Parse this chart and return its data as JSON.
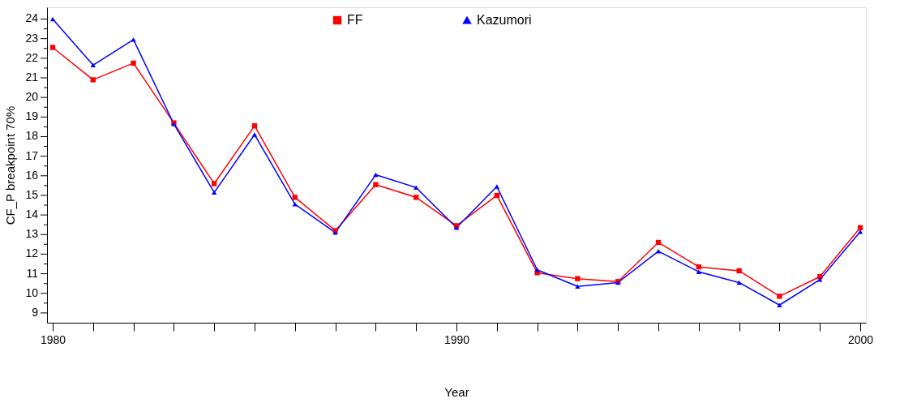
{
  "chart_data": {
    "type": "line",
    "xlabel": "Year",
    "ylabel": "CF_P breakpoint 70%",
    "x": [
      1980,
      1981,
      1982,
      1983,
      1984,
      1985,
      1986,
      1987,
      1988,
      1989,
      1990,
      1991,
      1992,
      1993,
      1994,
      1995,
      1996,
      1997,
      1998,
      1999,
      2000
    ],
    "series": [
      {
        "name": "FF",
        "color": "#ff0000",
        "marker": "square",
        "values": [
          22.55,
          20.9,
          21.75,
          18.7,
          15.6,
          18.55,
          14.9,
          13.2,
          15.55,
          14.9,
          13.45,
          15.0,
          11.05,
          10.75,
          10.6,
          12.6,
          11.35,
          11.15,
          9.85,
          10.85,
          13.35
        ]
      },
      {
        "name": "Kazumori",
        "color": "#0000ff",
        "marker": "triangle",
        "values": [
          24.0,
          21.65,
          22.95,
          18.65,
          15.15,
          18.1,
          14.55,
          13.1,
          16.05,
          15.4,
          13.35,
          15.45,
          11.2,
          10.35,
          10.55,
          12.15,
          11.1,
          10.55,
          9.4,
          10.7,
          13.15
        ]
      }
    ],
    "xlim": [
      1979.86,
      2000.14
    ],
    "ylim": [
      8.5,
      24.6
    ],
    "xticks": [
      1980,
      {
        "value": 1981,
        "label": null
      },
      {
        "value": 1982,
        "label": null
      },
      {
        "value": 1983,
        "label": null
      },
      {
        "value": 1984,
        "label": null
      },
      {
        "value": 1985,
        "label": null
      },
      {
        "value": 1986,
        "label": null
      },
      {
        "value": 1987,
        "label": null
      },
      {
        "value": 1988,
        "label": null
      },
      {
        "value": 1989,
        "label": null
      },
      1990,
      {
        "value": 1991,
        "label": null
      },
      {
        "value": 1992,
        "label": null
      },
      {
        "value": 1993,
        "label": null
      },
      {
        "value": 1994,
        "label": null
      },
      {
        "value": 1995,
        "label": null
      },
      {
        "value": 1996,
        "label": null
      },
      {
        "value": 1997,
        "label": null
      },
      {
        "value": 1998,
        "label": null
      },
      {
        "value": 1999,
        "label": null
      },
      2000
    ],
    "yticks": [
      9,
      {
        "value": 9.5,
        "label": null
      },
      10,
      {
        "value": 10.5,
        "label": null
      },
      11,
      {
        "value": 11.5,
        "label": null
      },
      12,
      {
        "value": 12.5,
        "label": null
      },
      13,
      {
        "value": 13.5,
        "label": null
      },
      14,
      {
        "value": 14.5,
        "label": null
      },
      15,
      {
        "value": 15.5,
        "label": null
      },
      16,
      {
        "value": 16.5,
        "label": null
      },
      17,
      {
        "value": 17.5,
        "label": null
      },
      18,
      {
        "value": 18.5,
        "label": null
      },
      19,
      {
        "value": 19.5,
        "label": null
      },
      20,
      {
        "value": 20.5,
        "label": null
      },
      21,
      {
        "value": 21.5,
        "label": null
      },
      22,
      {
        "value": 22.5,
        "label": null
      },
      23,
      {
        "value": 23.5,
        "label": null
      },
      24
    ],
    "legend": "top",
    "grid": false,
    "line_style": "solid"
  }
}
